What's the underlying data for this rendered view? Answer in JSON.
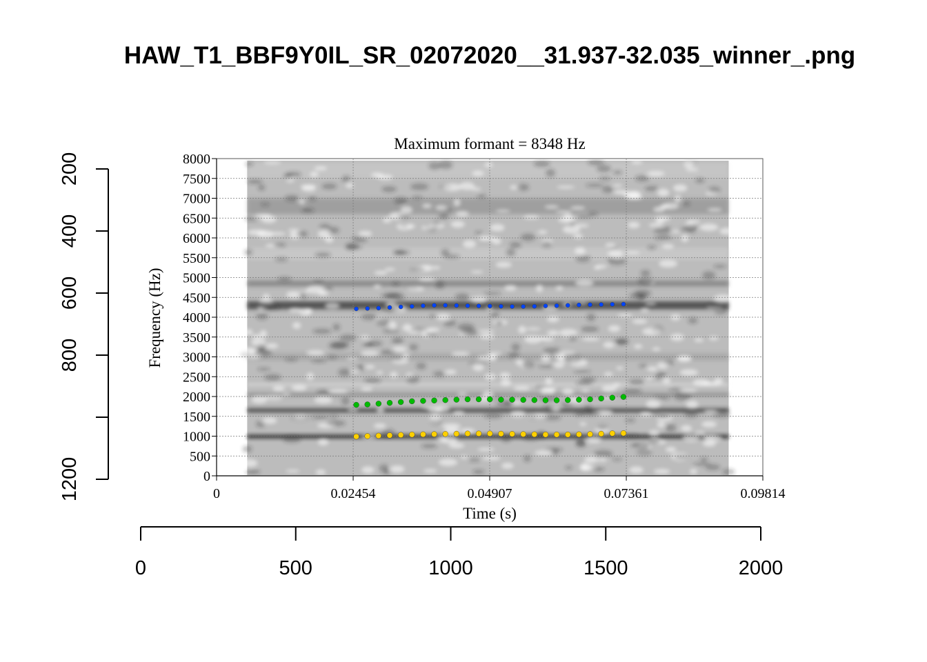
{
  "page_title": "HAW_T1_BBF9Y0IL_SR_02072020__31.937-32.035_winner_.png",
  "outer_axes": {
    "left": {
      "ticks": [
        200,
        400,
        600,
        800,
        1200
      ],
      "range": [
        200,
        1200
      ]
    },
    "bottom": {
      "ticks": [
        0,
        500,
        1000,
        1500,
        2000
      ],
      "range": [
        0,
        2000
      ]
    }
  },
  "chart_data": {
    "type": "scatter",
    "title": "Maximum formant  =  8348 Hz",
    "xlabel": "Time (s)",
    "ylabel": "Frequency (Hz)",
    "xlim": [
      0,
      0.09814
    ],
    "ylim": [
      0,
      8000
    ],
    "x_ticks": [
      "0",
      "0.02454",
      "0.04907",
      "0.07361",
      "0.09814"
    ],
    "y_ticks": [
      "0",
      "500",
      "1000",
      "1500",
      "2000",
      "2500",
      "3000",
      "3500",
      "4000",
      "4500",
      "5000",
      "5500",
      "6000",
      "6500",
      "7000",
      "7500",
      "8000"
    ],
    "grid": true,
    "background": "grayscale spectrogram spanning about 0.006–0.092 s",
    "x": [
      0.0251,
      0.0271,
      0.0291,
      0.0311,
      0.0331,
      0.0351,
      0.0371,
      0.0391,
      0.0411,
      0.0431,
      0.0451,
      0.0471,
      0.0491,
      0.0511,
      0.0531,
      0.0551,
      0.0571,
      0.0591,
      0.0611,
      0.0631,
      0.0651,
      0.0671,
      0.0691,
      0.0711,
      0.0731
    ],
    "series": [
      {
        "color": "#ffd000",
        "values": [
          990,
          1000,
          1010,
          1020,
          1030,
          1040,
          1045,
          1050,
          1055,
          1060,
          1065,
          1065,
          1065,
          1060,
          1055,
          1050,
          1045,
          1040,
          1040,
          1040,
          1045,
          1050,
          1060,
          1070,
          1075
        ]
      },
      {
        "color": "#00bb00",
        "values": [
          1790,
          1800,
          1820,
          1840,
          1860,
          1880,
          1890,
          1900,
          1910,
          1920,
          1930,
          1930,
          1930,
          1920,
          1920,
          1915,
          1910,
          1905,
          1905,
          1910,
          1920,
          1930,
          1950,
          1970,
          1990
        ]
      },
      {
        "color": "#0044ff",
        "values": [
          4210,
          4220,
          4230,
          4245,
          4260,
          4275,
          4290,
          4300,
          4300,
          4295,
          4290,
          4285,
          4280,
          4275,
          4270,
          4270,
          4275,
          4285,
          4290,
          4300,
          4310,
          4315,
          4320,
          4325,
          4330
        ]
      }
    ]
  }
}
